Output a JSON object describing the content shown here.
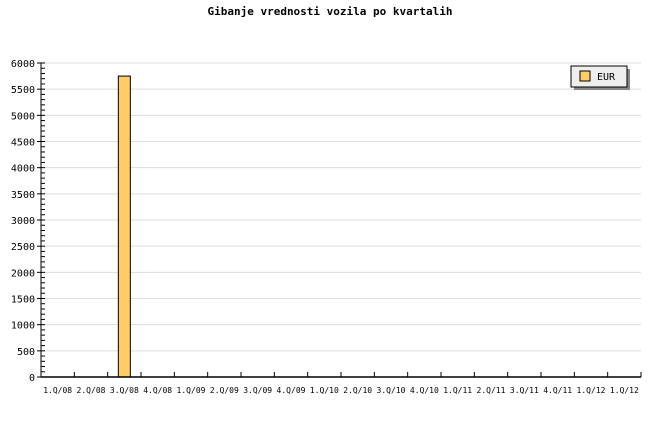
{
  "chart_data": {
    "type": "bar",
    "title": "Gibanje vrednosti vozila po kvartalih",
    "categories": [
      "1.Q/08",
      "2.Q/08",
      "3.Q/08",
      "4.Q/08",
      "1.Q/09",
      "2.Q/09",
      "3.Q/09",
      "4.Q/09",
      "1.Q/10",
      "2.Q/10",
      "3.Q/10",
      "4.Q/10",
      "1.Q/11",
      "2.Q/11",
      "3.Q/11",
      "4.Q/11",
      "1.Q/12",
      "1.Q/12"
    ],
    "series": [
      {
        "name": "EUR",
        "color": "#ffcc66",
        "values": [
          0,
          0,
          5750,
          0,
          0,
          0,
          0,
          0,
          0,
          0,
          0,
          0,
          0,
          0,
          0,
          0,
          0,
          0
        ]
      }
    ],
    "yticks": [
      "0",
      "500",
      "1000",
      "1500",
      "2000",
      "2500",
      "3000",
      "3500",
      "4000",
      "4500",
      "5000",
      "5500",
      "6000"
    ],
    "ylim": [
      0,
      6000
    ],
    "grid": true,
    "legend": "top-right"
  }
}
